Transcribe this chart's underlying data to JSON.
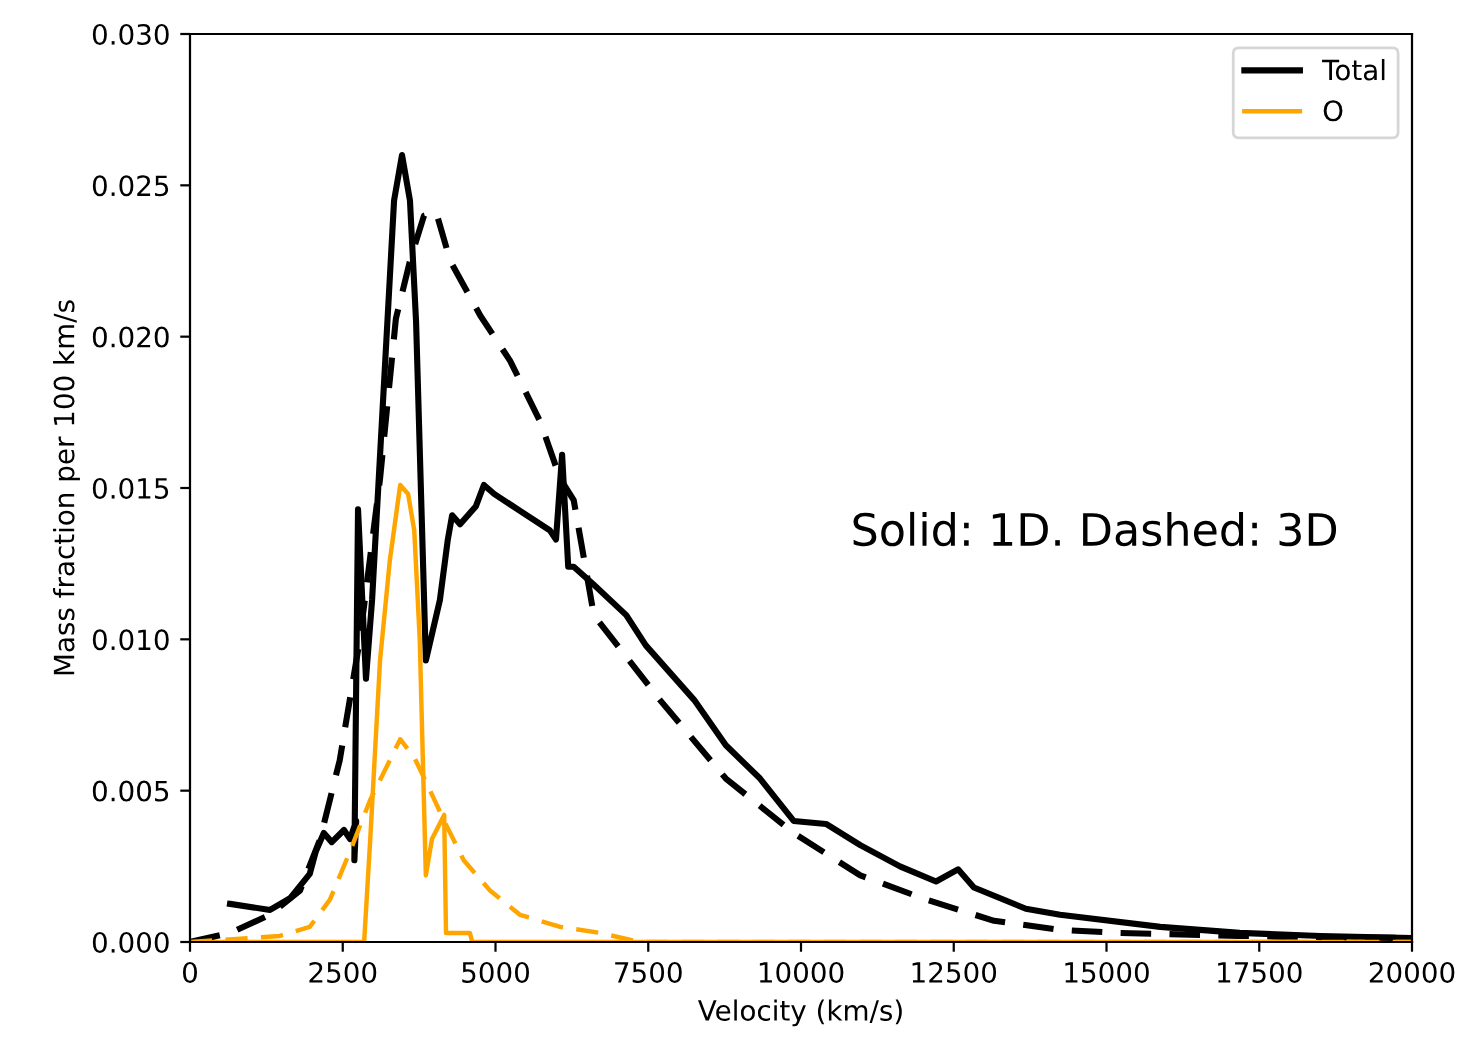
{
  "chart_data": {
    "type": "line",
    "xlabel": "Velocity (km/s)",
    "ylabel": "Mass fraction per 100 km/s",
    "xlim": [
      0,
      20000
    ],
    "xticks": [
      0,
      2500,
      5000,
      7500,
      10000,
      12500,
      15000,
      17500,
      20000
    ],
    "ylim": [
      0,
      0.03
    ],
    "yticks": [
      {
        "value": 0,
        "label": "0.000"
      },
      {
        "value": 0.005,
        "label": "0.005"
      },
      {
        "value": 0.01,
        "label": "0.010"
      },
      {
        "value": 0.015,
        "label": "0.015"
      },
      {
        "value": 0.02,
        "label": "0.020"
      },
      {
        "value": 0.025,
        "label": "0.025"
      },
      {
        "value": 0.03,
        "label": "0.030"
      }
    ],
    "grid": false,
    "legend": "top right",
    "annotations": [
      "Solid: 1D. Dashed: 3D"
    ],
    "series": [
      {
        "name": "Total",
        "color": "#000000",
        "line_style": "solid",
        "x": [
          655,
          1310,
          1640,
          1960,
          2060,
          2190,
          2320,
          2520,
          2620,
          2720,
          2690,
          2750,
          2880,
          2980,
          3340,
          3470,
          3600,
          3700,
          3860,
          4090,
          4220,
          4290,
          4420,
          4680,
          4810,
          4980,
          5890,
          5990,
          6090,
          6190,
          6280,
          6610,
          7140,
          7460,
          8250,
          8770,
          9330,
          9880,
          10410,
          10970,
          11620,
          12210,
          12570,
          12830,
          13680,
          14240,
          15880,
          17180,
          18500,
          20000
        ],
        "values": [
          0.00126,
          0.00106,
          0.00145,
          0.00225,
          0.003,
          0.0036,
          0.0033,
          0.0037,
          0.0034,
          0.004,
          0.0027,
          0.0143,
          0.0087,
          0.0113,
          0.0245,
          0.026,
          0.0245,
          0.0205,
          0.0093,
          0.0113,
          0.0133,
          0.0141,
          0.0138,
          0.0144,
          0.0151,
          0.0148,
          0.0136,
          0.0133,
          0.0161,
          0.0124,
          0.0124,
          0.0118,
          0.0108,
          0.0098,
          0.008,
          0.0065,
          0.0054,
          0.004,
          0.0039,
          0.0032,
          0.0025,
          0.002,
          0.0024,
          0.0018,
          0.0011,
          0.0009,
          0.0005,
          0.0003,
          0.0002,
          0.00013
        ]
      },
      {
        "name": "O",
        "color": "#ffa500",
        "line_style": "solid",
        "x": [
          0,
          2850,
          2950,
          3110,
          3270,
          3440,
          3570,
          3670,
          3760,
          3860,
          3960,
          4160,
          4190,
          4580,
          4620,
          20000
        ],
        "values": [
          0,
          0,
          0.0034,
          0.0093,
          0.0126,
          0.0151,
          0.0148,
          0.0136,
          0.01,
          0.0022,
          0.0034,
          0.0042,
          0.0003,
          0.0003,
          0,
          0
        ]
      },
      {
        "color": "#000000",
        "line_style": "dashed",
        "x": [
          0,
          655,
          1310,
          1800,
          2130,
          2450,
          2780,
          3110,
          3370,
          3600,
          3830,
          4030,
          4260,
          4750,
          5240,
          5730,
          6060,
          6280,
          6610,
          7690,
          8770,
          9880,
          10970,
          12050,
          13160,
          14240,
          15220,
          17180,
          20000
        ],
        "values": [
          0,
          0.0003,
          0.0009,
          0.0017,
          0.0034,
          0.006,
          0.01,
          0.0153,
          0.0206,
          0.0225,
          0.024,
          0.0241,
          0.0225,
          0.0207,
          0.0192,
          0.0172,
          0.0153,
          0.0146,
          0.0108,
          0.008,
          0.0054,
          0.0036,
          0.0022,
          0.0014,
          0.0007,
          0.0004,
          0.0003,
          0.0002,
          0.00013
        ]
      },
      {
        "color": "#ffa500",
        "line_style": "dashed",
        "x": [
          0,
          1470,
          1960,
          2290,
          2620,
          2950,
          3270,
          3440,
          3670,
          3930,
          4160,
          4480,
          4910,
          5400,
          6060,
          6710,
          7360,
          20000
        ],
        "values": [
          0,
          0.0002,
          0.0005,
          0.0014,
          0.003,
          0.0047,
          0.006,
          0.0067,
          0.0061,
          0.005,
          0.004,
          0.0027,
          0.0017,
          0.0009,
          0.0005,
          0.0003,
          0,
          0
        ]
      }
    ]
  }
}
